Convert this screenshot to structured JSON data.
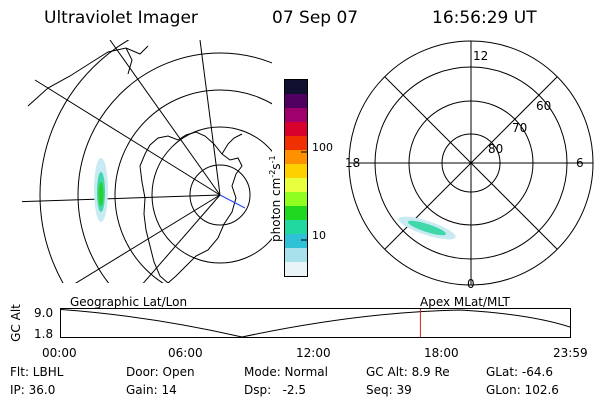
{
  "header": {
    "instrument": "Ultraviolet Imager",
    "date": "07 Sep 07",
    "time": "16:56:29 UT"
  },
  "colorbar": {
    "label": "photon cm",
    "label_sup1": "-2",
    "label_s": "s",
    "label_sup2": "-1",
    "tick_100": "100",
    "tick_10": "10",
    "colors": [
      "#101030",
      "#500060",
      "#a0006c",
      "#d8002c",
      "#f03000",
      "#ff9000",
      "#ffd000",
      "#e8ff40",
      "#90ff20",
      "#20d820",
      "#20d8a0",
      "#30c0d8",
      "#a8e0ec",
      "#e8f4f8"
    ]
  },
  "polar": {
    "mlt_12": "12",
    "mlt_18": "18",
    "mlt_6": "6",
    "mlt_0": "0",
    "lat_60": "60",
    "lat_70": "70",
    "lat_80": "80"
  },
  "timeline": {
    "left_title": "Geographic Lat/Lon",
    "right_title": "Apex  MLat/MLT",
    "axis_label": "GC Alt",
    "y_top": "9.0",
    "y_bottom": "1.8",
    "ticks": [
      "00:00",
      "06:00",
      "12:00",
      "18:00",
      "23:59"
    ],
    "current_marker_time": "16:56"
  },
  "info": {
    "flt": "Flt: LBHL",
    "ip": "IP: 36.0",
    "door": "Door: Open",
    "gain": "Gain: 14",
    "mode": "Mode: Normal",
    "dsp": "Dsp:   -2.5",
    "gcalt": "GC Alt: 8.9 Re",
    "seq": "Seq: 39",
    "glat": "GLat: -64.6",
    "glon": "GLon: 102.6"
  }
}
